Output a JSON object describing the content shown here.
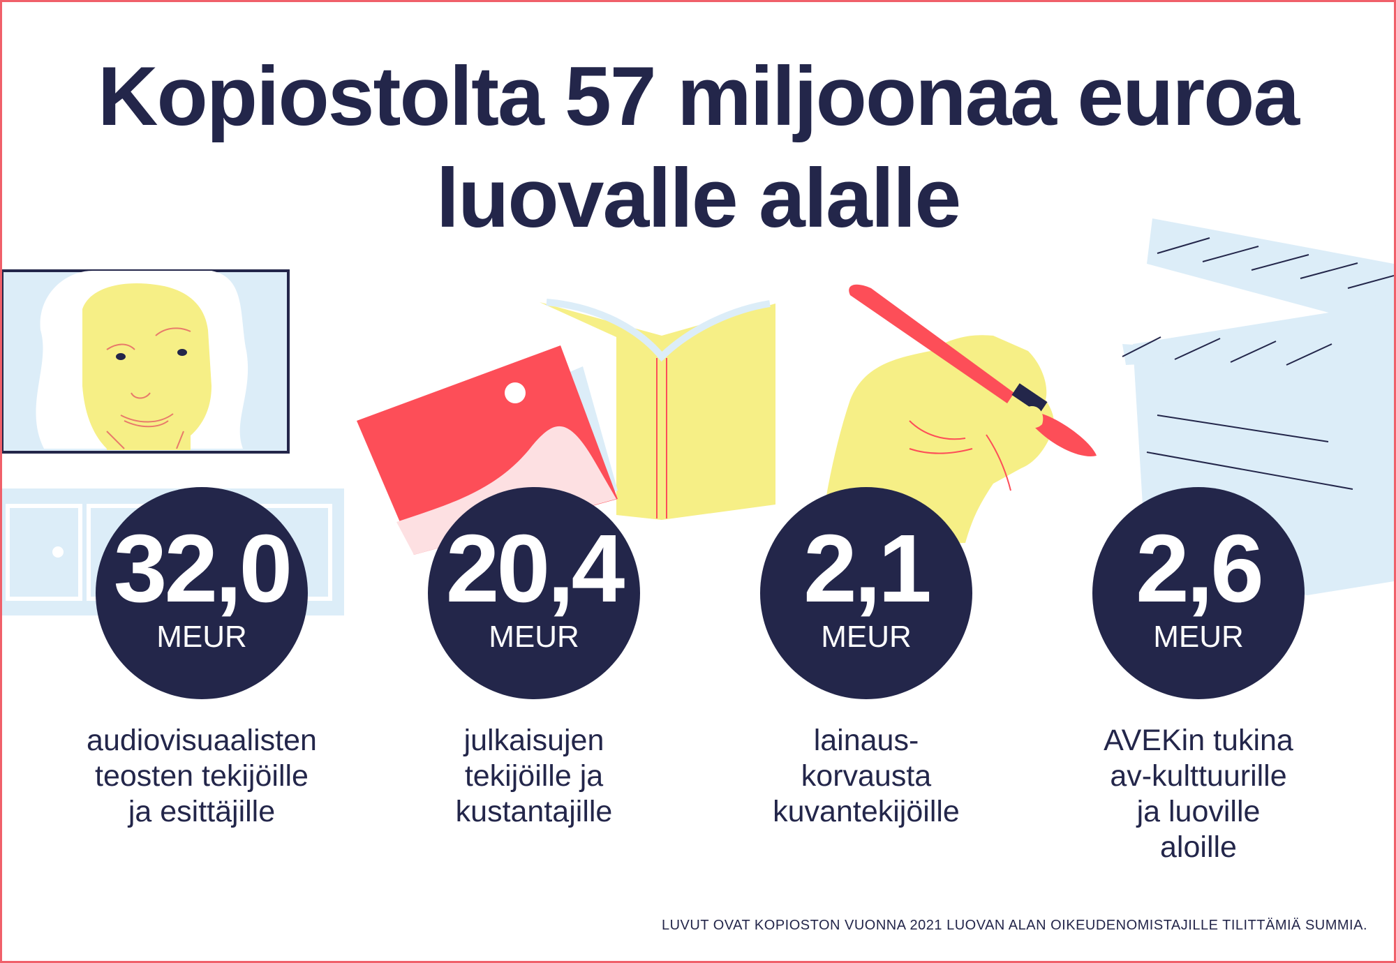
{
  "title": {
    "line1": "Kopiostolta 57 miljoonaa euroa",
    "line2": "luovalle alalle"
  },
  "stats": [
    {
      "value": "32,0",
      "unit": "MEUR",
      "desc": [
        "audiovisuaalisten",
        "teosten tekijöille",
        "ja esittäjille"
      ]
    },
    {
      "value": "20,4",
      "unit": "MEUR",
      "desc": [
        "julkaisujen",
        "tekijöille ja",
        "kustantajille"
      ]
    },
    {
      "value": "2,1",
      "unit": "MEUR",
      "desc": [
        "lainaus-",
        "korvausta",
        "kuvantekijöille"
      ]
    },
    {
      "value": "2,6",
      "unit": "MEUR",
      "desc": [
        "AVEKin tukina",
        "av-kulttuurille",
        "ja luoville",
        "aloille"
      ]
    }
  ],
  "footnote": "LUVUT OVAT KOPIOSTON VUONNA 2021 LUOVAN ALAN OIKEUDENOMISTAJILLE TILITTÄMIÄ SUMMIA.",
  "colors": {
    "navy": "#23264a",
    "red": "#fd4e58",
    "yellow": "#f6ef86",
    "lightblue": "#dcedf8",
    "pink": "#fde0e2",
    "border": "#f0606a"
  },
  "icons": [
    "tv-face-icon",
    "tv-cabinet-icon",
    "open-book-icon",
    "red-book-icon",
    "hand-paintbrush-icon",
    "clapperboard-icon"
  ]
}
